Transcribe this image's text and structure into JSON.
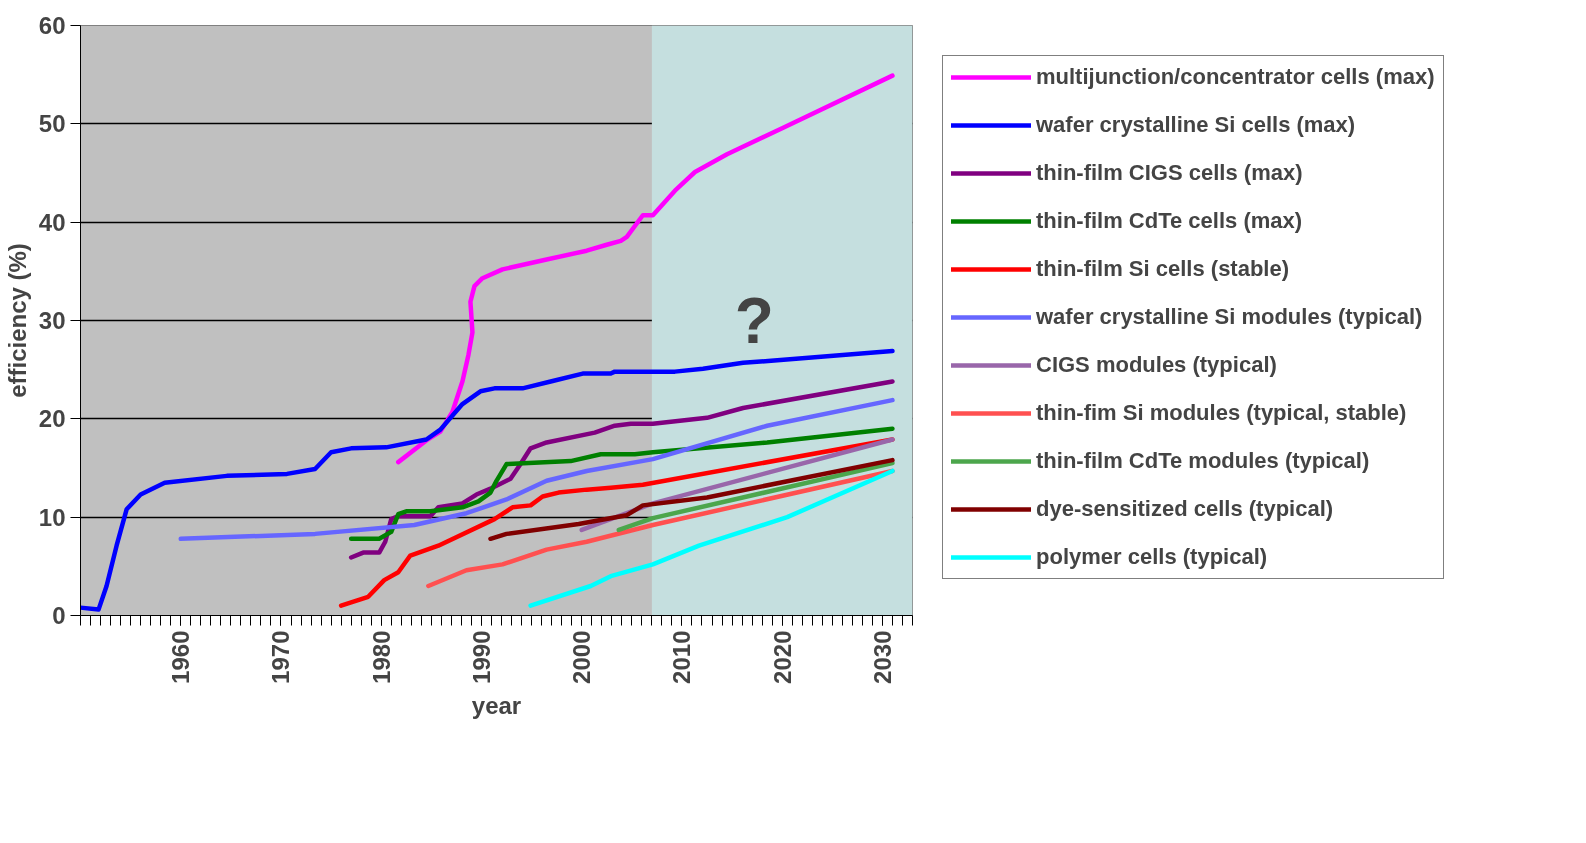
{
  "chart_data": {
    "type": "line",
    "xlabel": "year",
    "ylabel": "efficiency (%)",
    "xlim": [
      1950,
      2033
    ],
    "ylim": [
      0,
      60
    ],
    "xticks": [
      1960,
      1970,
      1980,
      1990,
      2000,
      2010,
      2020,
      2030
    ],
    "yticks": [
      0,
      10,
      20,
      30,
      40,
      50,
      60
    ],
    "grid": "y",
    "legend": "right",
    "marker": "none",
    "line_style": "solid",
    "bands": [
      {
        "axis": "x",
        "from": 2007,
        "to": 2033,
        "color": "#c5dfdf"
      }
    ],
    "annotations": [
      "?"
    ],
    "series": [
      {
        "name": "multijunction/concentrator cells (max)",
        "color": "#ff00ff",
        "x": [
          1981.7,
          1984.5,
          1985.9,
          1987.1,
          1988.1,
          1988.7,
          1989.1,
          1988.9,
          1989.3,
          1990.1,
          1992.1,
          1996.5,
          2000.5,
          2002.5,
          2003.9,
          2004.5,
          2006.1,
          2007.1,
          2009.3,
          2011.3,
          2014.5,
          2020.1,
          2031
        ],
        "values": [
          15.6,
          17.8,
          18.7,
          20.7,
          23.8,
          26.5,
          28.8,
          31.9,
          33.5,
          34.3,
          35.2,
          36.2,
          37.1,
          37.7,
          38.1,
          38.5,
          40.7,
          40.7,
          43.2,
          45.1,
          46.9,
          49.6,
          54.9
        ]
      },
      {
        "name": "wafer crystalline Si cells (max)",
        "color": "#0000ff",
        "x": [
          1950,
          1951.8,
          1952.6,
          1953.6,
          1954.6,
          1956,
          1958.4,
          1964.6,
          1970.6,
          1973.4,
          1975,
          1977,
          1980.5,
          1984.5,
          1985.9,
          1988.1,
          1989.9,
          1991.3,
          1994.1,
          1996.9,
          2000.1,
          2002.9,
          2003.3,
          2006.1,
          2009.3,
          2012.1,
          2016.1,
          2018.9,
          2031
        ],
        "values": [
          0.8,
          0.6,
          3.0,
          7.1,
          10.8,
          12.3,
          13.5,
          14.2,
          14.4,
          14.9,
          16.6,
          17.0,
          17.1,
          17.9,
          18.9,
          21.5,
          22.8,
          23.1,
          23.1,
          23.8,
          24.6,
          24.6,
          24.8,
          24.8,
          24.8,
          25.1,
          25.7,
          25.9,
          26.9
        ]
      },
      {
        "name": "thin-film CIGS cells (max)",
        "color": "#800080",
        "x": [
          1977,
          1978.2,
          1979.8,
          1980.4,
          1981,
          1981.7,
          1984.9,
          1985.7,
          1988.1,
          1989.5,
          1990.9,
          1992.9,
          1993.9,
          1994.9,
          1996.5,
          2001.3,
          2003.3,
          2004.9,
          2007.1,
          2012.5,
          2016.1,
          2031
        ],
        "values": [
          5.9,
          6.4,
          6.4,
          7.5,
          9.8,
          10.1,
          10.1,
          11.0,
          11.4,
          12.3,
          12.9,
          13.9,
          15.4,
          17.0,
          17.6,
          18.6,
          19.3,
          19.5,
          19.5,
          20.1,
          21.1,
          23.8
        ]
      },
      {
        "name": "thin-film CdTe cells (max)",
        "color": "#008000",
        "x": [
          1977,
          1979.8,
          1981,
          1981.7,
          1982.5,
          1984.9,
          1988.1,
          1989.7,
          1990.9,
          1991.5,
          1992.5,
          1998.9,
          2001.9,
          2005.3,
          2007.1,
          2018.5,
          2031
        ],
        "values": [
          7.8,
          7.8,
          8.5,
          10.3,
          10.6,
          10.6,
          11.0,
          11.6,
          12.5,
          13.7,
          15.4,
          15.7,
          16.4,
          16.4,
          16.6,
          17.6,
          19.0
        ]
      },
      {
        "name": "thin-film Si cells (stable)",
        "color": "#ff0000",
        "x": [
          1976,
          1978.7,
          1980.3,
          1981.7,
          1982.9,
          1985.7,
          1991.3,
          1993.1,
          1994.9,
          1996.1,
          1997.7,
          2000.5,
          2002.9,
          2006.1,
          2031
        ],
        "values": [
          1.0,
          1.9,
          3.6,
          4.4,
          6.1,
          7.1,
          9.8,
          11.0,
          11.2,
          12.1,
          12.5,
          12.8,
          13.0,
          13.3,
          17.9
        ]
      },
      {
        "name": "wafer crystalline Si modules (typical)",
        "color": "#6666ff",
        "x": [
          1960,
          1965.4,
          1973.4,
          1983.3,
          1988.5,
          1992.5,
          1996.5,
          2000.5,
          2007.1,
          2018.5,
          2031
        ],
        "values": [
          7.8,
          8.0,
          8.3,
          9.2,
          10.4,
          11.8,
          13.7,
          14.7,
          15.9,
          19.3,
          21.9
        ]
      },
      {
        "name": "CIGS modules (typical)",
        "color": "#9966aa",
        "x": [
          2000,
          2007.1,
          2031
        ],
        "values": [
          8.7,
          11.4,
          17.9
        ]
      },
      {
        "name": "thin-fim Si modules (typical, stable)",
        "color": "#ff5050",
        "x": [
          1984.7,
          1988.5,
          1992.1,
          1996.5,
          2000.5,
          2007.1,
          2031
        ],
        "values": [
          3.0,
          4.6,
          5.2,
          6.7,
          7.5,
          9.2,
          14.7
        ]
      },
      {
        "name": "thin-film CdTe modules (typical)",
        "color": "#4ca64c",
        "x": [
          2003.7,
          2007.1,
          2031
        ],
        "values": [
          8.7,
          9.9,
          15.5
        ]
      },
      {
        "name": "dye-sensitized cells (typical)",
        "color": "#800000",
        "x": [
          1990.9,
          1992.5,
          1999.7,
          2004.5,
          2006.1,
          2012.5,
          2031
        ],
        "values": [
          7.8,
          8.3,
          9.3,
          10.2,
          11.2,
          12.0,
          15.8
        ]
      },
      {
        "name": "polymer cells (typical)",
        "color": "#00ffff",
        "x": [
          1994.9,
          2000.9,
          2002.9,
          2007.1,
          2011.7,
          2020.5,
          2031
        ],
        "values": [
          1.0,
          3.0,
          4.0,
          5.2,
          7.1,
          10.0,
          14.7
        ]
      }
    ]
  }
}
